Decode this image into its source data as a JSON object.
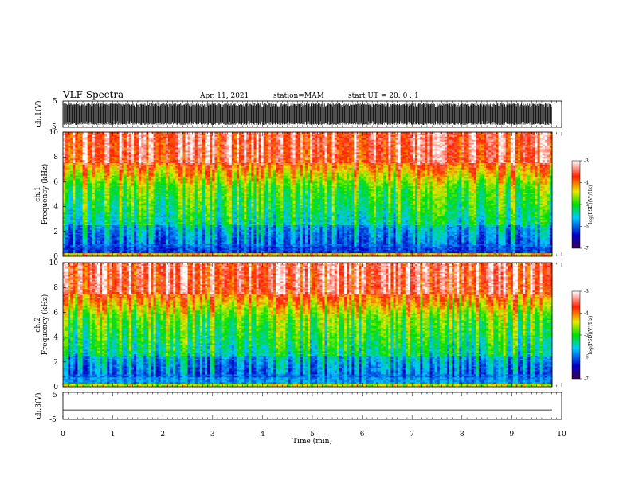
{
  "header": {
    "title": "VLF Spectra",
    "date": "Apr. 11, 2021",
    "station": "station=MAM",
    "start": "start UT =  20: 0 : 1"
  },
  "chart_data": [
    {
      "type": "line",
      "ylabel": "ch.1(V)",
      "ylim": [
        -5,
        5
      ],
      "yticks": [
        "5",
        "-5"
      ],
      "xlim": [
        0,
        10
      ],
      "description_series": "dense VLF waveform oscillating near full scale"
    },
    {
      "type": "heatmap",
      "ylabel": "ch.1",
      "ylabel2": "Frequency (kHz)",
      "ylim": [
        0,
        10
      ],
      "yticks": [
        "0",
        "2",
        "4",
        "6",
        "8",
        "10"
      ],
      "xlim": [
        0,
        10
      ],
      "colorbar": {
        "label": "log(PSD)(V²/Hz)",
        "range": [
          -7,
          -3
        ],
        "ticks": [
          "-3",
          "-4",
          "-5",
          "-6",
          "-7"
        ]
      }
    },
    {
      "type": "heatmap",
      "ylabel": "ch.2",
      "ylabel2": "Frequency (kHz)",
      "ylim": [
        0,
        10
      ],
      "yticks": [
        "0",
        "2",
        "4",
        "6",
        "8",
        "10"
      ],
      "xlim": [
        0,
        10
      ],
      "colorbar": {
        "label": "log(PSD)(V²/Hz)",
        "range": [
          -7,
          -3
        ],
        "ticks": [
          "-3",
          "-4",
          "-5",
          "-6",
          "-7"
        ]
      }
    },
    {
      "type": "line",
      "ylabel": "ch.3(V)",
      "ylim": [
        -5,
        5
      ],
      "yticks": [
        "5",
        "-5"
      ],
      "xlim": [
        0,
        10
      ],
      "xlabel": "Time (min)",
      "xticks": [
        "0",
        "1",
        "2",
        "3",
        "4",
        "5",
        "6",
        "7",
        "8",
        "9",
        "10"
      ],
      "constant_value": -1.5
    }
  ]
}
